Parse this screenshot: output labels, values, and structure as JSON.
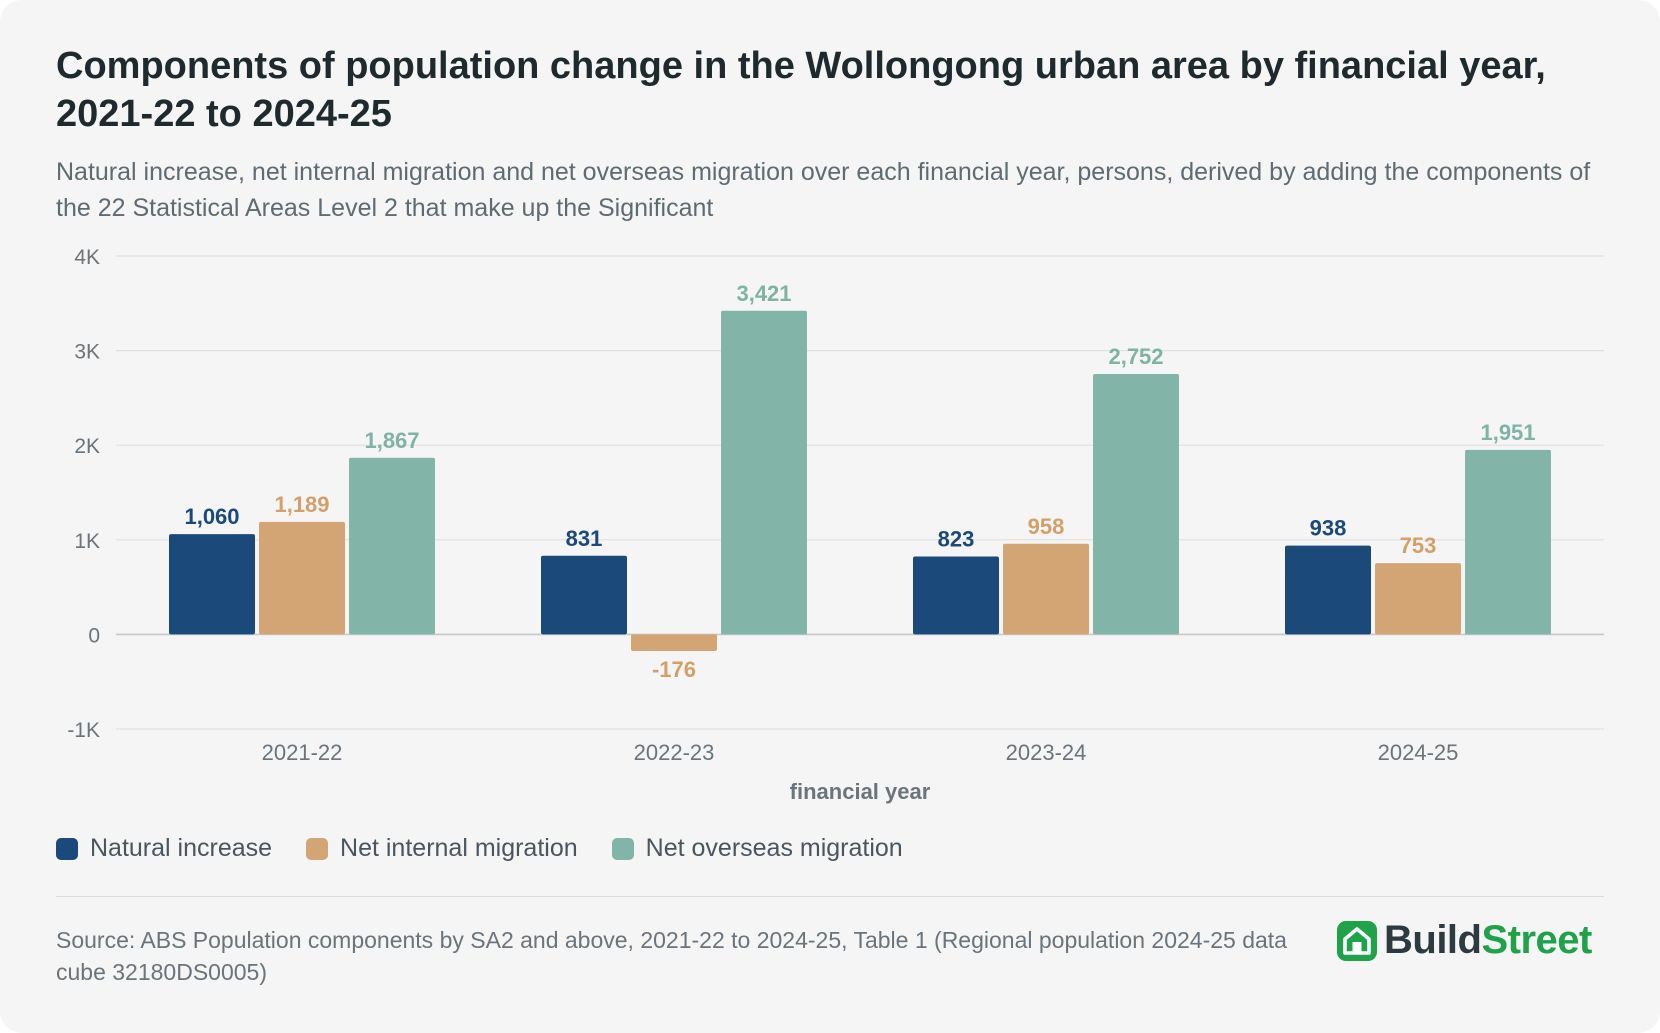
{
  "header": {
    "title": "Components of population change in the Wollongong urban area by financial year, 2021-22 to 2024-25",
    "subtitle": "Natural increase, net internal migration and net overseas migration over each financial year, persons, derived by adding the components of the 22 Statistical Areas Level 2 that make up the Significant"
  },
  "colors": {
    "natural_increase": "#1b4a7a",
    "net_internal_migration": "#d4a574",
    "net_overseas_migration": "#82b5a8",
    "gridline": "#e0e0e0",
    "axis_text": "#6a747c",
    "brand_green": "#1fa24a"
  },
  "chart_data": {
    "type": "bar",
    "categories": [
      "2021-22",
      "2022-23",
      "2023-24",
      "2024-25"
    ],
    "series": [
      {
        "name": "Natural increase",
        "values": [
          1060,
          831,
          823,
          938
        ],
        "labels": [
          "1,060",
          "831",
          "823",
          "938"
        ]
      },
      {
        "name": "Net internal migration",
        "values": [
          1189,
          -176,
          958,
          753
        ],
        "labels": [
          "1,189",
          "-176",
          "958",
          "753"
        ]
      },
      {
        "name": "Net overseas migration",
        "values": [
          1867,
          3421,
          2752,
          1951
        ],
        "labels": [
          "1,867",
          "3,421",
          "2,752",
          "1,951"
        ]
      }
    ],
    "xlabel": "financial year",
    "ylabel": "",
    "ylim": [
      -1000,
      4000
    ],
    "yticks": [
      -1000,
      0,
      1000,
      2000,
      3000,
      4000
    ],
    "ytick_labels": [
      "-1K",
      "0",
      "1K",
      "2K",
      "3K",
      "4K"
    ],
    "grid": true,
    "legend_position": "bottom-left"
  },
  "footer": {
    "source": "Source: ABS Population components by SA2 and above, 2021-22 to 2024-25, Table 1 (Regional population 2024-25 data cube 32180DS0005)",
    "logo_build": "Build",
    "logo_street": "Street",
    "logo_icon": "house-icon"
  }
}
